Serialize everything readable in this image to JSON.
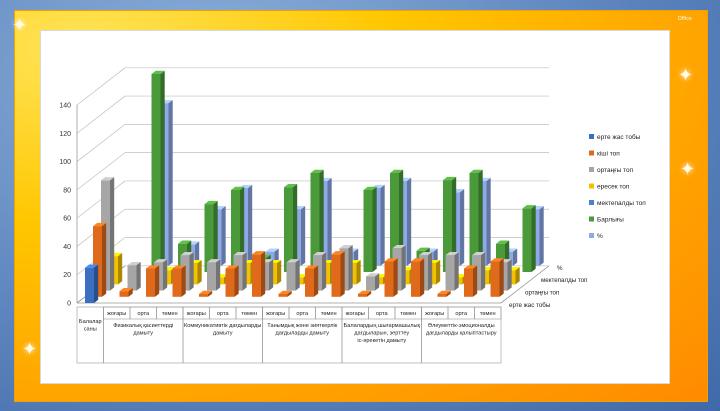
{
  "slide": {
    "label": "Office"
  },
  "chart_data": {
    "type": "bar",
    "three_d": true,
    "ylim": [
      0,
      140
    ],
    "yticks": [
      0,
      20,
      40,
      60,
      80,
      100,
      120,
      140
    ],
    "grid": true,
    "legend_position": "right",
    "groups": [
      {
        "label": "Балалар саны",
        "subcats": [
          ""
        ]
      },
      {
        "label": "Физикалық қасиеттерді дамыту",
        "subcats": [
          "жоғары",
          "орта",
          "төмен"
        ]
      },
      {
        "label": "Коммуникативтік дағдыларды дамыту",
        "subcats": [
          "жоғары",
          "орта",
          "төмен"
        ]
      },
      {
        "label": "Танымдық және зияткерлік дағдыларды дамыту",
        "subcats": [
          "жоғары",
          "орта",
          "төмен"
        ]
      },
      {
        "label": "Балалардың шығармашылық дағдыларын, зерттеу іс-әрекетін дамыту",
        "subcats": [
          "жоғары",
          "орта",
          "төмен"
        ]
      },
      {
        "label": "Әлеуметтік-эмоционалды дағдыларды қалыптастыру",
        "subcats": [
          "жоғары",
          "орта",
          "төмен"
        ]
      }
    ],
    "depth_labels": [
      "ерте жас тобы",
      "ортаңғы топ",
      "мектепалды топ",
      "%"
    ],
    "series": [
      {
        "name": "ерте жас тобы",
        "color": "#3a6fc4",
        "values": [
          25,
          0,
          0,
          0,
          0,
          0,
          0,
          0,
          0,
          0,
          0,
          0,
          0,
          0,
          0,
          0
        ]
      },
      {
        "name": "кіші топ",
        "color": "#e06a1c",
        "values": [
          50,
          4,
          20,
          20,
          2,
          20,
          30,
          2,
          20,
          30,
          2,
          25,
          25,
          2,
          20,
          25
        ]
      },
      {
        "name": "ортаңғы топ",
        "color": "#a6a6a6",
        "values": [
          78,
          18,
          20,
          25,
          20,
          25,
          20,
          20,
          25,
          30,
          10,
          30,
          25,
          25,
          25,
          20
        ]
      },
      {
        "name": "ересек топ",
        "color": "#f2c200",
        "values": [
          20,
          0,
          10,
          15,
          5,
          15,
          15,
          5,
          15,
          15,
          5,
          10,
          15,
          5,
          10,
          10
        ]
      },
      {
        "name": "мектепалды топ",
        "color": "#4f7fd3",
        "values": [
          0,
          0,
          0,
          0,
          0,
          0,
          0,
          0,
          0,
          0,
          0,
          0,
          0,
          0,
          0,
          0
        ]
      },
      {
        "name": "Барлығы",
        "color": "#4a9a3a",
        "values": [
          0,
          140,
          20,
          48,
          58,
          10,
          60,
          70,
          10,
          58,
          70,
          15,
          65,
          70,
          20,
          45
        ]
      },
      {
        "name": "%",
        "color": "#8ea9e8",
        "values": [
          0,
          115,
          15,
          40,
          55,
          10,
          40,
          60,
          10,
          55,
          60,
          10,
          52,
          60,
          10,
          40
        ]
      }
    ]
  }
}
